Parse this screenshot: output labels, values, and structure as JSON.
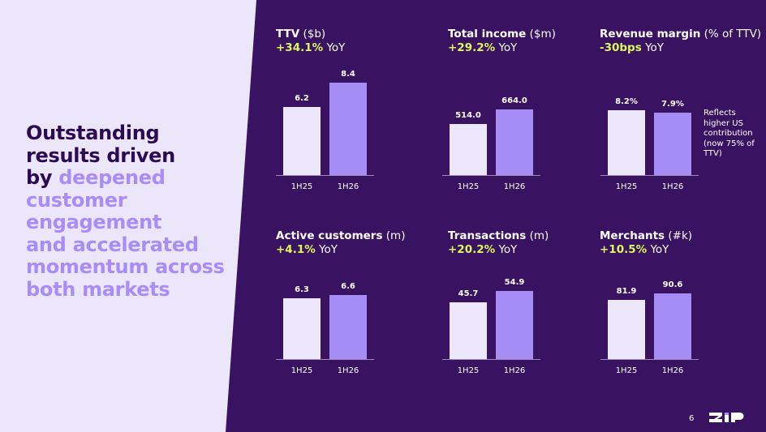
{
  "headline": [
    [
      {
        "text": "Outstanding",
        "color": "#2d0a55"
      }
    ],
    [
      {
        "text": "results driven",
        "color": "#2d0a55"
      }
    ],
    [
      {
        "text": "by",
        "color": "#2d0a55"
      },
      {
        "text": "deepened",
        "color": "#a98cf7"
      }
    ],
    [
      {
        "text": "customer",
        "color": "#a98cf7"
      }
    ],
    [
      {
        "text": "engagement",
        "color": "#a98cf7"
      }
    ],
    [
      {
        "text": "and accelerated",
        "color": "#a98cf7"
      }
    ],
    [
      {
        "text": "momentum across",
        "color": "#a98cf7"
      }
    ],
    [
      {
        "text": "both markets",
        "color": "#a98cf7"
      }
    ]
  ],
  "page_number": 6,
  "chart_data": [
    {
      "type": "bar",
      "title": "TTV",
      "title_unit": "($b)",
      "change": "+34.1%",
      "change_suffix": "YoY",
      "categories": [
        "1H25",
        "1H26"
      ],
      "values": [
        6.2,
        8.4
      ],
      "colors": [
        "#ede7fb",
        "#a68cf5"
      ]
    },
    {
      "type": "bar",
      "title": "Total income",
      "title_unit": "($m)",
      "change": "+29.2%",
      "change_suffix": "YoY",
      "categories": [
        "1H25",
        "1H26"
      ],
      "values": [
        514,
        664
      ],
      "value_labels": [
        "514.0",
        "664.0"
      ],
      "colors": [
        "#ede7fb",
        "#a68cf5"
      ]
    },
    {
      "type": "bar",
      "title": "Revenue margin",
      "title_unit": "(% of TTV)",
      "change": "-30bps",
      "change_suffix": "YoY",
      "categories": [
        "1H25",
        "1H26"
      ],
      "values": [
        8.2,
        7.9
      ],
      "value_labels": [
        "8.2%",
        "7.9%"
      ],
      "colors": [
        "#ede7fb",
        "#a68cf5"
      ],
      "annotation": "Reflects higher US contribution (now 75% of TTV)"
    },
    {
      "type": "bar",
      "title": "Active customers",
      "title_unit": "(m)",
      "change": "+4.1%",
      "change_suffix": "YoY",
      "categories": [
        "1H25",
        "1H26"
      ],
      "values": [
        6.3,
        6.6
      ],
      "colors": [
        "#ede7fb",
        "#a68cf5"
      ]
    },
    {
      "type": "bar",
      "title": "Transactions",
      "title_unit": "(m)",
      "change": "+20.2%",
      "change_suffix": "YoY",
      "categories": [
        "1H25",
        "1H26"
      ],
      "values": [
        45.7,
        54.9
      ],
      "colors": [
        "#ede7fb",
        "#a68cf5"
      ]
    },
    {
      "type": "bar",
      "title": "Merchants",
      "title_unit": "(#k)",
      "change": "+10.5%",
      "change_suffix": "YoY",
      "categories": [
        "1H25",
        "1H26"
      ],
      "values": [
        81.9,
        90.6
      ],
      "colors": [
        "#ede7fb",
        "#a68cf5"
      ]
    }
  ]
}
